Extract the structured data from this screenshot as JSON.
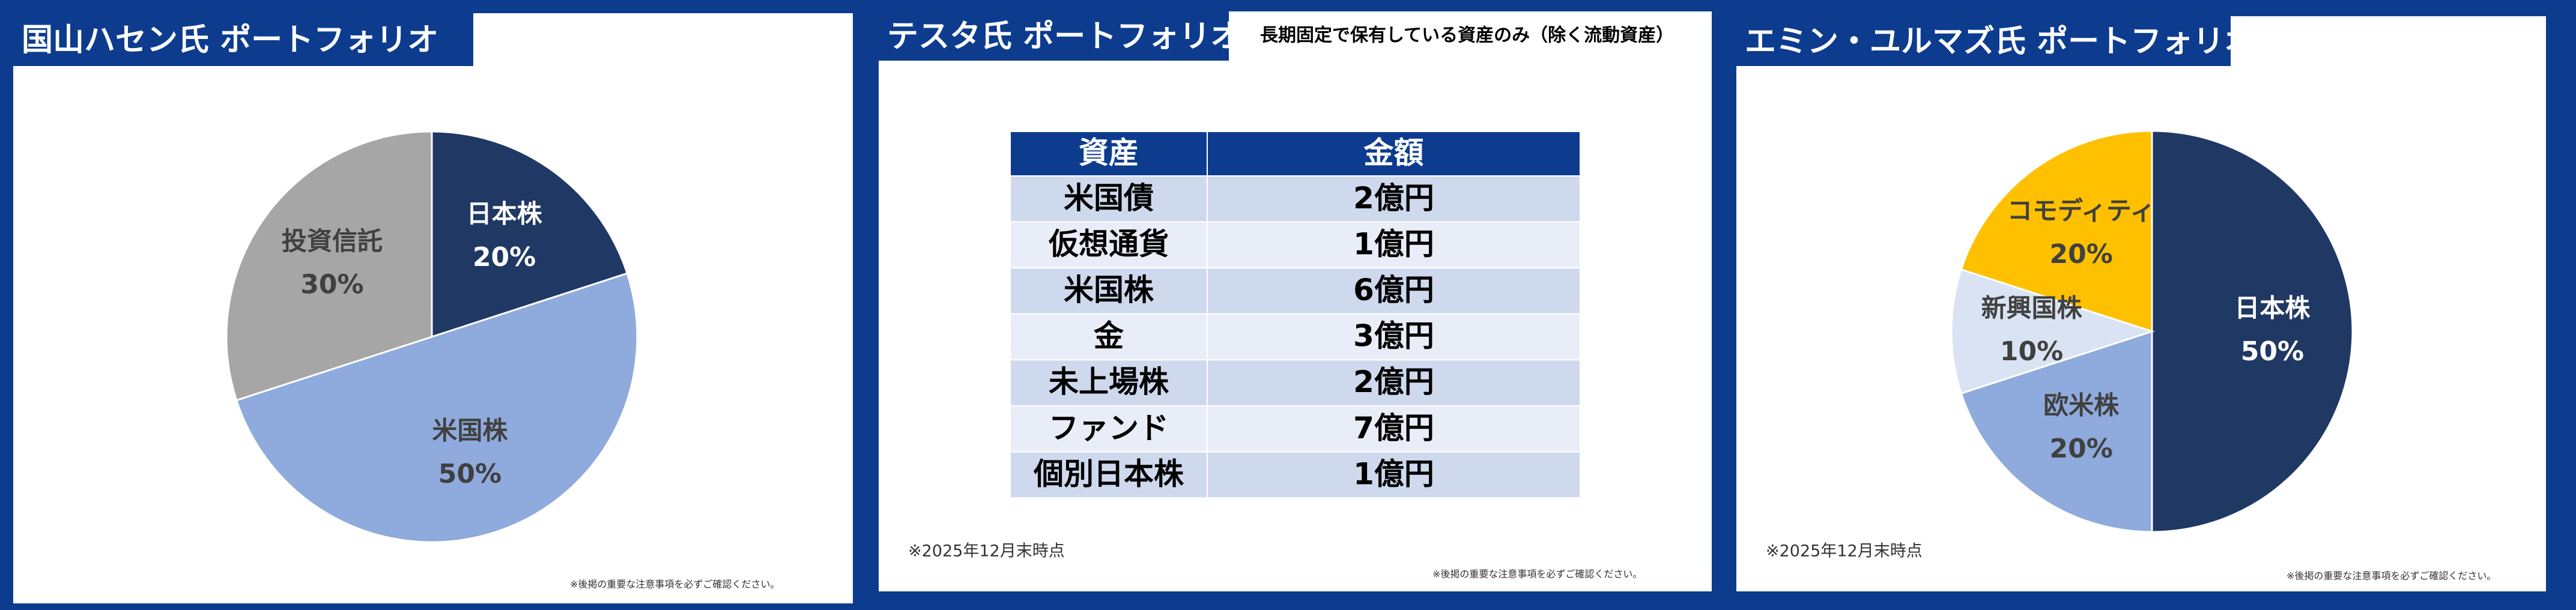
{
  "chart_data": [
    {
      "type": "pie",
      "title": "国山ハセン氏 ポートフォリオ",
      "categories": [
        "日本株",
        "米国株",
        "投資信託"
      ],
      "values": [
        20,
        50,
        30
      ],
      "value_labels": [
        "20%",
        "50%",
        "30%"
      ],
      "colors": [
        "#203864",
        "#8faadc",
        "#a6a6a6"
      ],
      "label_colors": [
        "#ffffff",
        "#404040",
        "#404040"
      ],
      "disclaimer": "※後掲の重要な注意事項を必ずご確認ください。"
    },
    {
      "type": "table",
      "title": "テスタ氏 ポートフォリオ",
      "subtitle": "長期固定で保有している資産のみ（除く流動資産）",
      "columns": [
        "資産",
        "金額"
      ],
      "rows": [
        [
          "米国債",
          "2億円"
        ],
        [
          "仮想通貨",
          "1億円"
        ],
        [
          "米国株",
          "6億円"
        ],
        [
          "金",
          "3億円"
        ],
        [
          "未上場株",
          "2億円"
        ],
        [
          "ファンド",
          "7億円"
        ],
        [
          "個別日本株",
          "1億円"
        ]
      ],
      "note": "※2025年12月末時点",
      "disclaimer": "※後掲の重要な注意事項を必ずご確認ください。"
    },
    {
      "type": "pie",
      "title": "エミン・ユルマズ氏 ポートフォリオ",
      "categories": [
        "日本株",
        "欧米株",
        "新興国株",
        "コモディティ"
      ],
      "values": [
        50,
        20,
        10,
        20
      ],
      "value_labels": [
        "50%",
        "20%",
        "10%",
        "20%"
      ],
      "colors": [
        "#203864",
        "#8faadc",
        "#dae3f3",
        "#ffc000"
      ],
      "label_colors": [
        "#ffffff",
        "#404040",
        "#404040",
        "#404040"
      ],
      "note": "※2025年12月末時点",
      "disclaimer": "※後掲の重要な注意事項を必ずご確認ください。"
    }
  ]
}
